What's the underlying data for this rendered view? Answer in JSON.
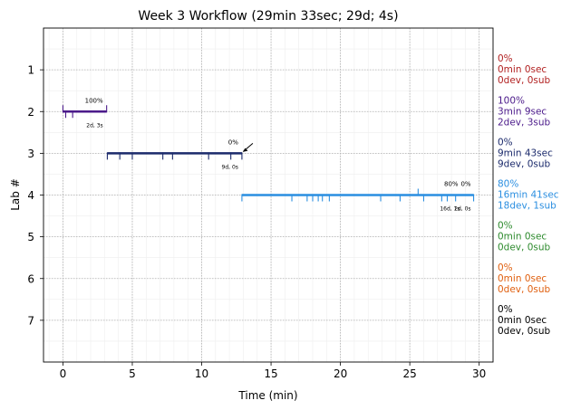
{
  "chart_data": {
    "type": "timeline",
    "title": "Week 3 Workflow (29min 33sec; 29d; 4s)",
    "xlabel": "Time (min)",
    "ylabel": "Lab #",
    "xlim": [
      -1.4,
      31
    ],
    "ylim": [
      0,
      8
    ],
    "x_ticks": [
      "0",
      "5",
      "10",
      "15",
      "20",
      "25",
      "30"
    ],
    "y_ticks": [
      "1",
      "2",
      "3",
      "4",
      "5",
      "6",
      "7"
    ],
    "grid": true,
    "labs": [
      {
        "lab": 1,
        "percent": "0%",
        "time": "0min 0sec",
        "counts": "0dev, 0sub",
        "color": "#b22222",
        "start": null,
        "end": null,
        "dev_ticks": [],
        "sub_ticks": [],
        "bar_percent": "",
        "bar_counts": ""
      },
      {
        "lab": 2,
        "percent": "100%",
        "time": "3min 9sec",
        "counts": "2dev, 3sub",
        "color": "#4b1a8a",
        "start": 0.0,
        "end": 3.15,
        "dev_ticks": [
          0.2,
          0.7
        ],
        "sub_ticks": [
          0.0,
          3.15
        ],
        "bar_percent": "100%",
        "bar_counts": "2d, 3s"
      },
      {
        "lab": 3,
        "percent": "0%",
        "time": "9min 43sec",
        "counts": "9dev, 0sub",
        "color": "#1b2a6b",
        "start": 3.2,
        "end": 12.9,
        "dev_ticks": [
          3.2,
          4.1,
          5.0,
          7.2,
          7.9,
          10.5,
          12.1,
          12.9
        ],
        "sub_ticks": [],
        "bar_percent": "0%",
        "bar_counts": "9d, 0s"
      },
      {
        "lab": 4,
        "percent": "80%",
        "time": "16min 41sec",
        "counts": "18dev, 1sub",
        "color": "#2a8ee0",
        "start": 12.9,
        "end": 29.6,
        "dev_ticks": [
          12.9,
          16.5,
          17.6,
          18.0,
          18.4,
          18.7,
          19.2,
          22.9,
          24.3,
          26.0,
          27.3,
          27.7,
          28.3,
          29.6
        ],
        "sub_ticks": [
          25.6
        ],
        "bar_percent": "80%",
        "bar_counts": "16d, 1s",
        "bar_percent_2": "0%",
        "bar_counts_2": "2d, 0s"
      },
      {
        "lab": 5,
        "percent": "0%",
        "time": "0min 0sec",
        "counts": "0dev, 0sub",
        "color": "#2e8b2e",
        "start": null,
        "end": null,
        "dev_ticks": [],
        "sub_ticks": [],
        "bar_percent": "",
        "bar_counts": ""
      },
      {
        "lab": 6,
        "percent": "0%",
        "time": "0min 0sec",
        "counts": "0dev, 0sub",
        "color": "#e06010",
        "start": null,
        "end": null,
        "dev_ticks": [],
        "sub_ticks": [],
        "bar_percent": "",
        "bar_counts": ""
      },
      {
        "lab": 7,
        "percent": "0%",
        "time": "0min 0sec",
        "counts": "0dev, 0sub",
        "color": "#000000",
        "start": null,
        "end": null,
        "dev_ticks": [],
        "sub_ticks": [],
        "bar_percent": "",
        "bar_counts": ""
      }
    ]
  }
}
